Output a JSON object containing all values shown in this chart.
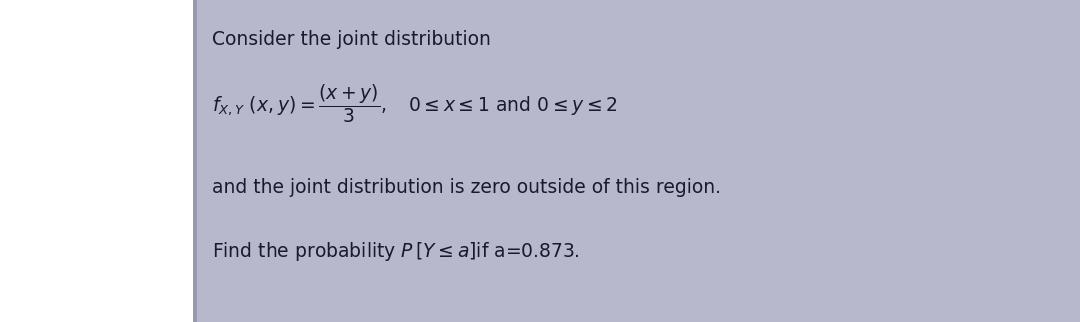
{
  "outer_bg": "#ffffff",
  "inner_bg": "#b8b8cc",
  "text_color": "#1a1a2e",
  "left_strip_color": "#ffffff",
  "fig_width": 10.8,
  "fig_height": 3.22,
  "dpi": 100,
  "line1": "Consider the joint distribution",
  "line3": "and the joint distribution is zero outside of this region.",
  "line4_prefix": "Find the probability ",
  "line4_suffix": "if a=0.873."
}
